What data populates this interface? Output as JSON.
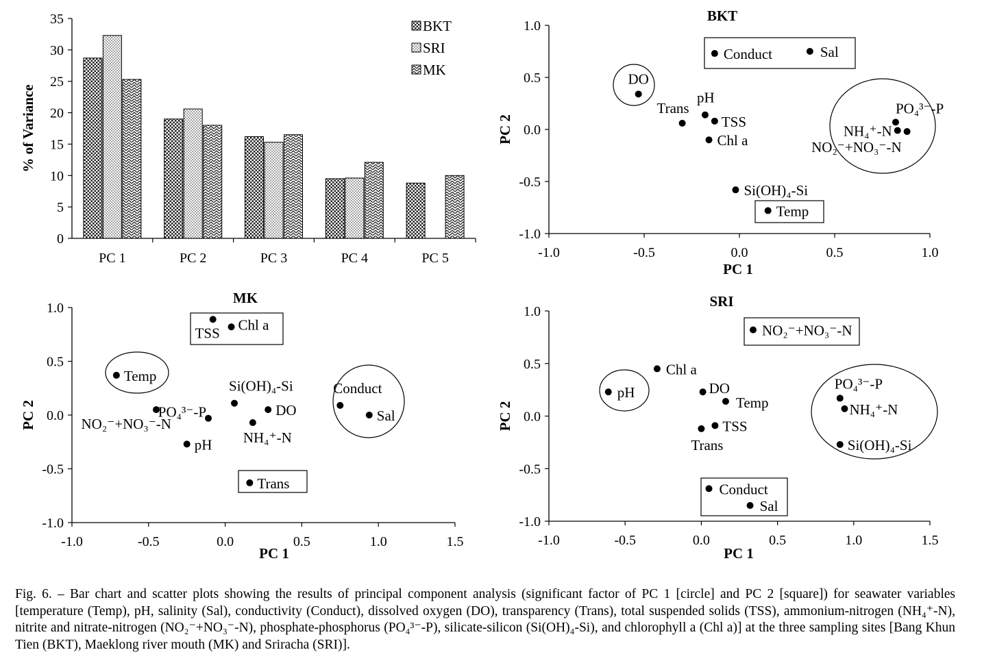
{
  "patterns": {
    "BKT": "pat-bkt",
    "SRI": "pat-sri",
    "MK": "pat-mk"
  },
  "chart_data": [
    {
      "type": "bar",
      "title": "",
      "xlabel": "",
      "ylabel": "% of Variance",
      "ylim": [
        0,
        35
      ],
      "yticks": [
        "0",
        "5",
        "10",
        "15",
        "20",
        "25",
        "30",
        "35"
      ],
      "categories": [
        "PC 1",
        "PC 2",
        "PC 3",
        "PC 4",
        "PC 5"
      ],
      "series": [
        {
          "name": "BKT",
          "values": [
            28.7,
            19.0,
            16.2,
            9.5,
            8.8
          ]
        },
        {
          "name": "SRI",
          "values": [
            32.3,
            20.6,
            15.3,
            9.6,
            null
          ]
        },
        {
          "name": "MK",
          "values": [
            25.3,
            18.0,
            16.5,
            12.1,
            10.0
          ]
        }
      ],
      "legend": "top-right"
    },
    {
      "type": "scatter",
      "title": "BKT",
      "xlabel": "PC 1",
      "ylabel": "PC 2",
      "xlim": [
        -1.0,
        1.0
      ],
      "ylim": [
        -1.0,
        1.0
      ],
      "xticks": [
        "-1.0",
        "-0.5",
        "0.0",
        "0.5",
        "1.0"
      ],
      "yticks": [
        "-1.0",
        "-0.5",
        "0.0",
        "0.5",
        "1.0"
      ],
      "points": [
        {
          "label": "Conduct",
          "x": -0.13,
          "y": 0.73
        },
        {
          "label": "Sal",
          "x": 0.37,
          "y": 0.75
        },
        {
          "label": "DO",
          "x": -0.53,
          "y": 0.34
        },
        {
          "label": "Trans",
          "x": -0.3,
          "y": 0.06
        },
        {
          "label": "pH",
          "x": -0.18,
          "y": 0.14
        },
        {
          "label": "TSS",
          "x": -0.13,
          "y": 0.08
        },
        {
          "label": "Chl a",
          "x": -0.16,
          "y": -0.1
        },
        {
          "label": "PO₄³⁻-P",
          "x": 0.82,
          "y": 0.07
        },
        {
          "label": "NH₄⁺-N",
          "x": 0.83,
          "y": -0.01
        },
        {
          "label": "NO₂⁻+NO₃⁻-N",
          "x": 0.88,
          "y": -0.02
        },
        {
          "label": "Si(OH)₄-Si",
          "x": -0.02,
          "y": -0.58
        },
        {
          "label": "Temp",
          "x": 0.15,
          "y": -0.78
        }
      ]
    },
    {
      "type": "scatter",
      "title": "MK",
      "xlabel": "PC 1",
      "ylabel": "PC 2",
      "xlim": [
        -1.0,
        1.5
      ],
      "ylim": [
        -1.0,
        1.0
      ],
      "xticks": [
        "-1.0",
        "-0.5",
        "0.0",
        "0.5",
        "1.0",
        "1.5"
      ],
      "yticks": [
        "-1.0",
        "-0.5",
        "0.0",
        "0.5",
        "1.0"
      ],
      "points": [
        {
          "label": "TSS",
          "x": -0.08,
          "y": 0.89
        },
        {
          "label": "Chl a",
          "x": 0.04,
          "y": 0.82
        },
        {
          "label": "Temp",
          "x": -0.71,
          "y": 0.37
        },
        {
          "label": "NO₂⁻+NO₃⁻-N",
          "x": -0.45,
          "y": 0.05
        },
        {
          "label": "PO₄³⁻-P",
          "x": -0.11,
          "y": -0.03
        },
        {
          "label": "Si(OH)₄-Si",
          "x": 0.06,
          "y": 0.11
        },
        {
          "label": "DO",
          "x": 0.28,
          "y": 0.05
        },
        {
          "label": "NH₄⁺-N",
          "x": 0.18,
          "y": -0.07
        },
        {
          "label": "pH",
          "x": -0.25,
          "y": -0.27
        },
        {
          "label": "Conduct",
          "x": 0.75,
          "y": 0.09
        },
        {
          "label": "Sal",
          "x": 0.94,
          "y": 0.0
        },
        {
          "label": "Trans",
          "x": 0.16,
          "y": -0.63
        }
      ]
    },
    {
      "type": "scatter",
      "title": "SRI",
      "xlabel": "PC 1",
      "ylabel": "PC 2",
      "xlim": [
        -1.0,
        1.5
      ],
      "ylim": [
        -1.0,
        1.0
      ],
      "xticks": [
        "-1.0",
        "-0.5",
        "0.0",
        "0.5",
        "1.0",
        "1.5"
      ],
      "yticks": [
        "-1.0",
        "-0.5",
        "0.0",
        "0.5",
        "1.0"
      ],
      "points": [
        {
          "label": "NO₂⁻+NO₃⁻-N",
          "x": 0.34,
          "y": 0.82
        },
        {
          "label": "Chl a",
          "x": -0.29,
          "y": 0.45
        },
        {
          "label": "pH",
          "x": -0.61,
          "y": 0.23
        },
        {
          "label": "DO",
          "x": 0.01,
          "y": 0.23
        },
        {
          "label": "Temp",
          "x": 0.16,
          "y": 0.14
        },
        {
          "label": "TSS",
          "x": 0.09,
          "y": -0.09
        },
        {
          "label": "Trans",
          "x": 0.0,
          "y": -0.12
        },
        {
          "label": "PO₄³⁻-P",
          "x": 0.91,
          "y": 0.17
        },
        {
          "label": "NH₄⁺-N",
          "x": 0.94,
          "y": 0.07
        },
        {
          "label": "Si(OH)₄-Si",
          "x": 0.91,
          "y": -0.27
        },
        {
          "label": "Conduct",
          "x": 0.05,
          "y": -0.69
        },
        {
          "label": "Sal",
          "x": 0.32,
          "y": -0.85
        }
      ]
    }
  ],
  "caption": "Fig. 6. – Bar chart and scatter plots showing the results of principal component analysis (significant factor of PC 1 [circle] and PC 2 [square]) for seawater variables [temperature (Temp), pH, salinity (Sal), conductivity (Conduct), dissolved oxygen (DO), transparency (Trans), total suspended solids (TSS), ammonium-nitrogen (NH₄⁺-N), nitrite and nitrate-nitrogen (NO₂⁻+NO₃⁻-N), phosphate-phosphorus (PO₄³⁻-P), silicate-silicon (Si(OH)₄-Si), and chlorophyll a (Chl a)] at the three sampling sites [Bang Khun Tien (BKT), Maeklong river mouth (MK) and Sriracha (SRI)]."
}
